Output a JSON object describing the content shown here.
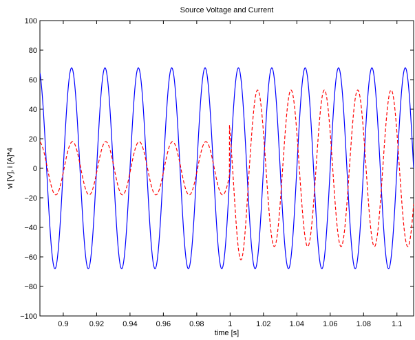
{
  "chart_data": {
    "type": "line",
    "title": "Source Voltage and Current",
    "xlabel": "time [s]",
    "ylabel": "vi [V], i [A]*4",
    "xlim": [
      0.886,
      1.11
    ],
    "ylim": [
      -100,
      100
    ],
    "xticks": [
      0.9,
      0.92,
      0.94,
      0.96,
      0.98,
      1,
      1.02,
      1.04,
      1.06,
      1.08,
      1.1
    ],
    "xtick_labels": [
      "0.9",
      "0.92",
      "0.94",
      "0.96",
      "0.98",
      "1",
      "1.02",
      "1.04",
      "1.06",
      "1.08",
      "1.1"
    ],
    "yticks": [
      -100,
      -80,
      -60,
      -40,
      -20,
      0,
      20,
      40,
      60,
      80,
      100
    ],
    "ytick_labels": [
      "−100",
      "−80",
      "−60",
      "−40",
      "−20",
      "0",
      "20",
      "40",
      "60",
      "80",
      "100"
    ],
    "grid": false,
    "series": [
      {
        "style": "solid",
        "color": "#0000ff",
        "function": "sine",
        "amplitude": 68,
        "frequency_hz": 50,
        "peak_time_s": 0.905
      },
      {
        "style": "dashed",
        "color": "#ff0000",
        "function": "piecewise-sine",
        "frequency_hz": 50,
        "segments": [
          {
            "t_start": 0.886,
            "t_end": 0.9996,
            "amplitude": 18,
            "peak_time_s": 0.9055
          },
          {
            "t_start": 0.9996,
            "t_end": 1.11,
            "amplitude": 53,
            "peak_time_s": 1.0165,
            "first_trough_time_s": 1.0065,
            "first_trough_value": -62
          }
        ]
      }
    ]
  }
}
